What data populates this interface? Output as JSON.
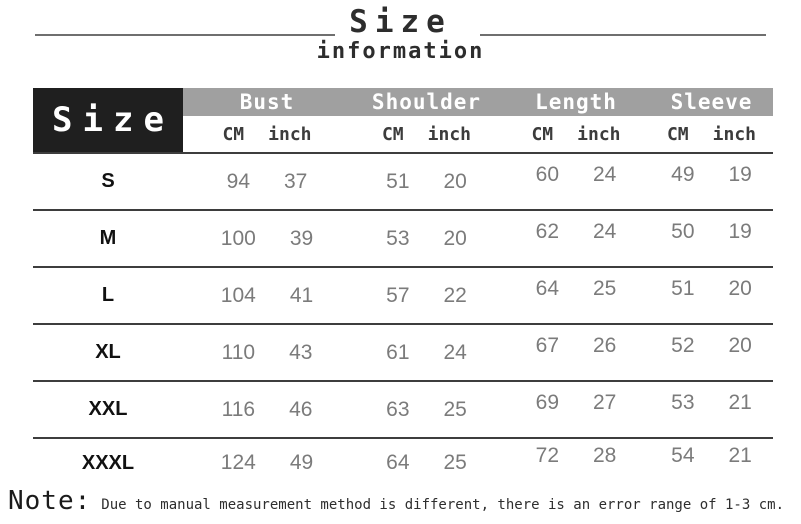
{
  "title": {
    "main": "Size",
    "sub": "information"
  },
  "table": {
    "corner_label": "Size",
    "columns": [
      "Bust",
      "Shoulder",
      "Length",
      "Sleeve"
    ],
    "units": {
      "cm": "CM",
      "inch": "inch"
    },
    "rows": [
      {
        "size": "S",
        "bust": [
          94,
          37
        ],
        "shoulder": [
          51,
          20
        ],
        "length": [
          60,
          24
        ],
        "sleeve": [
          49,
          19
        ]
      },
      {
        "size": "M",
        "bust": [
          100,
          39
        ],
        "shoulder": [
          53,
          20
        ],
        "length": [
          62,
          24
        ],
        "sleeve": [
          50,
          19
        ]
      },
      {
        "size": "L",
        "bust": [
          104,
          41
        ],
        "shoulder": [
          57,
          22
        ],
        "length": [
          64,
          25
        ],
        "sleeve": [
          51,
          20
        ]
      },
      {
        "size": "XL",
        "bust": [
          110,
          43
        ],
        "shoulder": [
          61,
          24
        ],
        "length": [
          67,
          26
        ],
        "sleeve": [
          52,
          20
        ]
      },
      {
        "size": "XXL",
        "bust": [
          116,
          46
        ],
        "shoulder": [
          63,
          25
        ],
        "length": [
          69,
          27
        ],
        "sleeve": [
          53,
          21
        ]
      },
      {
        "size": "XXXL",
        "bust": [
          124,
          49
        ],
        "shoulder": [
          64,
          25
        ],
        "length": [
          72,
          28
        ],
        "sleeve": [
          54,
          21
        ]
      }
    ]
  },
  "note": {
    "label": "Note:",
    "text": "Due to manual measurement method is different, there is an error range of 1-3 cm."
  },
  "colors": {
    "corner_block": "#1f1f1f",
    "header_bar": "#a0a0a0",
    "header_text": "#ffffff",
    "row_line": "#3d3d3d",
    "value_text": "#7b7b7b",
    "label_text": "#111111"
  },
  "chart_data": {
    "type": "table",
    "title": "Size information",
    "columns": [
      "Size",
      "Bust CM",
      "Bust inch",
      "Shoulder CM",
      "Shoulder inch",
      "Length CM",
      "Length inch",
      "Sleeve CM",
      "Sleeve inch"
    ],
    "rows": [
      [
        "S",
        94,
        37,
        51,
        20,
        60,
        24,
        49,
        19
      ],
      [
        "M",
        100,
        39,
        53,
        20,
        62,
        24,
        50,
        19
      ],
      [
        "L",
        104,
        41,
        57,
        22,
        64,
        25,
        51,
        20
      ],
      [
        "XL",
        110,
        43,
        61,
        24,
        67,
        26,
        52,
        20
      ],
      [
        "XXL",
        116,
        46,
        63,
        25,
        69,
        27,
        53,
        21
      ],
      [
        "XXXL",
        124,
        49,
        64,
        25,
        72,
        28,
        54,
        21
      ]
    ],
    "note": "Due to manual measurement method is different, there is an error range of 1-3 cm."
  }
}
